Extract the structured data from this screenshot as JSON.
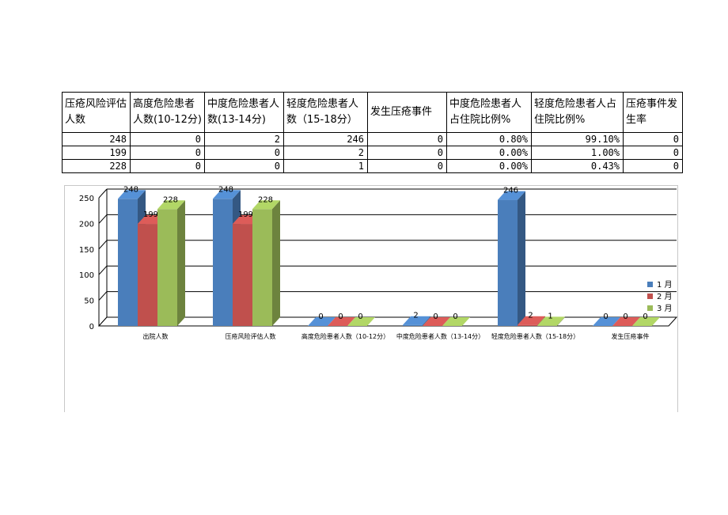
{
  "table": {
    "headers": [
      "压疮风险评估人数",
      "高度危险患者人数(10-12分)",
      "中度危险患者人数(13-14分)",
      "轻度危险患者人数（15-18分）",
      "发生压疮事件",
      "中度危险患者人占住院比例%",
      "轻度危险患者人占住院比例%",
      "压疮事件发生率"
    ],
    "rows": [
      [
        "248",
        "0",
        "2",
        "246",
        "0",
        "0.80%",
        "99.10%",
        "0"
      ],
      [
        "199",
        "0",
        "0",
        "2",
        "0",
        "0.00%",
        "1.00%",
        "0"
      ],
      [
        "228",
        "0",
        "0",
        "1",
        "0",
        "0.00%",
        "0.43%",
        "0"
      ]
    ]
  },
  "chart_data": {
    "type": "bar",
    "categories": [
      "出院人数",
      "压疮风险评估人数",
      "高度危险患者人数（10-12分）",
      "中度危险患者人数（13-14分）",
      "轻度危险患者人数（15-18分）",
      "发生压疮事件"
    ],
    "series": [
      {
        "name": "1 月",
        "color": "#4a7ebb",
        "values": [
          248,
          248,
          0,
          2,
          246,
          0
        ]
      },
      {
        "name": "2 月",
        "color": "#c0504d",
        "values": [
          199,
          199,
          0,
          0,
          2,
          0
        ]
      },
      {
        "name": "3 月",
        "color": "#9bbb59",
        "values": [
          228,
          228,
          0,
          0,
          1,
          0
        ]
      }
    ],
    "yticks": [
      "0",
      "50",
      "100",
      "150",
      "200",
      "250"
    ],
    "ylim": [
      0,
      250
    ],
    "grid": true,
    "legend": "right",
    "style": "3d-clustered-column"
  }
}
